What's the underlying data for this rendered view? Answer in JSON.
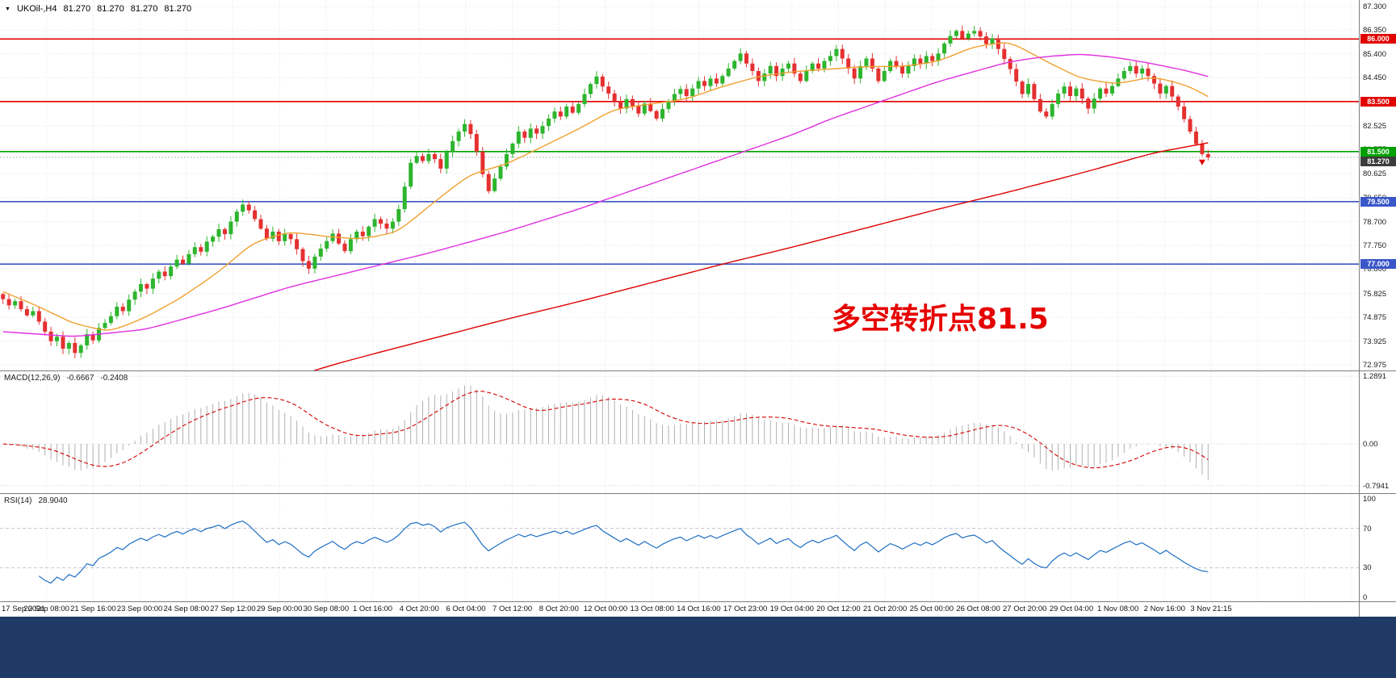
{
  "app": {
    "bottom_bar_color": "#1f3a64"
  },
  "symbol_info": {
    "marker": "▼",
    "name": "UKOil-,H4",
    "open": "81.270",
    "high": "81.270",
    "low": "81.270",
    "close": "81.270"
  },
  "annotation": {
    "text": "多空转折点81.5",
    "color": "#e60000"
  },
  "chart_data": {
    "type": "candlestick",
    "symbol": "UKOil-",
    "timeframe": "H4",
    "current_price": 81.27,
    "price_axis": {
      "min": 72.975,
      "max": 87.3,
      "labels": [
        "87.300",
        "86.350",
        "85.400",
        "84.450",
        "83.500",
        "82.525",
        "81.575",
        "80.625",
        "79.650",
        "78.700",
        "77.750",
        "76.800",
        "75.825",
        "74.875",
        "73.925",
        "72.975"
      ]
    },
    "time_labels": [
      "17 Sep 2021",
      "20 Sep 08:00",
      "21 Sep 16:00",
      "23 Sep 00:00",
      "24 Sep 08:00",
      "27 Sep 12:00",
      "29 Sep 00:00",
      "30 Sep 08:00",
      "1 Oct 16:00",
      "4 Oct 20:00",
      "6 Oct 04:00",
      "7 Oct 12:00",
      "8 Oct 20:00",
      "12 Oct 00:00",
      "13 Oct 08:00",
      "14 Oct 16:00",
      "17 Oct 23:00",
      "19 Oct 04:00",
      "20 Oct 12:00",
      "21 Oct 20:00",
      "25 Oct 00:00",
      "26 Oct 08:00",
      "27 Oct 20:00",
      "29 Oct 04:00",
      "1 Nov 08:00",
      "2 Nov 16:00",
      "3 Nov 21:15"
    ],
    "candles": {
      "first_open": 75.8,
      "closes": [
        75.6,
        75.35,
        75.52,
        75.2,
        74.95,
        75.12,
        74.7,
        74.3,
        73.92,
        74.1,
        73.62,
        73.85,
        73.45,
        73.75,
        74.2,
        73.95,
        74.45,
        74.65,
        74.92,
        75.3,
        75.12,
        75.58,
        75.9,
        76.2,
        76.02,
        76.42,
        76.7,
        76.52,
        76.9,
        77.18,
        77.02,
        77.4,
        77.68,
        77.5,
        77.9,
        78.1,
        78.4,
        78.2,
        78.7,
        79.1,
        79.38,
        79.15,
        78.8,
        78.42,
        78.02,
        78.3,
        77.92,
        78.2,
        78.0,
        77.6,
        77.12,
        76.82,
        77.3,
        77.62,
        77.92,
        78.22,
        77.82,
        77.52,
        78.0,
        78.3,
        78.12,
        78.5,
        78.8,
        78.62,
        78.42,
        78.7,
        79.2,
        80.1,
        81.05,
        81.32,
        81.12,
        81.4,
        81.2,
        80.82,
        81.5,
        81.92,
        82.3,
        82.6,
        82.2,
        81.5,
        80.6,
        79.92,
        80.42,
        80.9,
        81.4,
        81.82,
        82.3,
        82.05,
        82.42,
        82.22,
        82.52,
        82.82,
        83.1,
        82.9,
        83.3,
        83.05,
        83.4,
        83.8,
        84.2,
        84.5,
        84.1,
        83.82,
        83.52,
        83.22,
        83.6,
        83.32,
        83.02,
        83.42,
        83.12,
        82.82,
        83.2,
        83.52,
        83.8,
        84.0,
        83.72,
        84.02,
        84.32,
        84.12,
        84.42,
        84.22,
        84.52,
        84.82,
        85.12,
        85.42,
        85.02,
        84.72,
        84.32,
        84.62,
        84.92,
        84.52,
        84.82,
        85.02,
        84.62,
        84.32,
        84.72,
        85.02,
        84.82,
        85.12,
        85.32,
        85.6,
        85.22,
        84.82,
        84.42,
        84.92,
        85.22,
        84.82,
        84.32,
        84.72,
        85.12,
        84.92,
        84.62,
        84.92,
        85.22,
        85.02,
        85.32,
        85.12,
        85.42,
        85.82,
        86.12,
        86.32,
        86.02,
        86.22,
        86.32,
        86.1,
        85.8,
        86.02,
        85.6,
        85.2,
        84.8,
        84.3,
        83.8,
        84.2,
        83.6,
        83.1,
        82.9,
        83.4,
        83.82,
        84.1,
        83.72,
        84.02,
        83.62,
        83.22,
        83.62,
        84.02,
        83.82,
        84.12,
        84.42,
        84.72,
        84.92,
        84.62,
        84.82,
        84.52,
        84.22,
        83.82,
        84.12,
        83.7,
        83.3,
        82.8,
        82.3,
        81.8,
        81.4,
        81.27
      ]
    },
    "moving_averages": [
      {
        "name": "fast-ma",
        "color": "#f0a030",
        "points": [
          [
            0,
            75.9
          ],
          [
            6,
            75.3
          ],
          [
            12,
            74.6
          ],
          [
            18,
            74.3
          ],
          [
            24,
            74.9
          ],
          [
            30,
            75.7
          ],
          [
            36,
            76.7
          ],
          [
            42,
            77.9
          ],
          [
            48,
            78.3
          ],
          [
            54,
            78.1
          ],
          [
            60,
            78.0
          ],
          [
            66,
            78.3
          ],
          [
            72,
            79.5
          ],
          [
            78,
            80.6
          ],
          [
            84,
            81.0
          ],
          [
            90,
            81.7
          ],
          [
            96,
            82.4
          ],
          [
            102,
            83.2
          ],
          [
            108,
            83.4
          ],
          [
            114,
            83.6
          ],
          [
            120,
            84.1
          ],
          [
            126,
            84.5
          ],
          [
            132,
            84.7
          ],
          [
            138,
            84.8
          ],
          [
            144,
            84.9
          ],
          [
            150,
            84.9
          ],
          [
            156,
            85.1
          ],
          [
            162,
            85.7
          ],
          [
            168,
            85.9
          ],
          [
            174,
            85.1
          ],
          [
            180,
            84.4
          ],
          [
            186,
            84.2
          ],
          [
            192,
            84.5
          ],
          [
            198,
            84.1
          ],
          [
            201,
            83.7
          ]
        ]
      },
      {
        "name": "medium-ma",
        "color": "#e030e0",
        "points": [
          [
            0,
            74.3
          ],
          [
            12,
            74.1
          ],
          [
            24,
            74.4
          ],
          [
            36,
            75.2
          ],
          [
            48,
            76.1
          ],
          [
            60,
            76.8
          ],
          [
            72,
            77.5
          ],
          [
            84,
            78.3
          ],
          [
            96,
            79.2
          ],
          [
            108,
            80.2
          ],
          [
            120,
            81.2
          ],
          [
            132,
            82.2
          ],
          [
            138,
            82.8
          ],
          [
            144,
            83.3
          ],
          [
            150,
            83.8
          ],
          [
            156,
            84.3
          ],
          [
            162,
            84.7
          ],
          [
            168,
            85.1
          ],
          [
            174,
            85.3
          ],
          [
            180,
            85.4
          ],
          [
            186,
            85.25
          ],
          [
            192,
            85.0
          ],
          [
            198,
            84.7
          ],
          [
            201,
            84.5
          ]
        ]
      },
      {
        "name": "slow-ma",
        "color": "#dd0000",
        "points": [
          [
            46,
            72.3
          ],
          [
            55,
            72.975
          ],
          [
            60,
            73.3
          ],
          [
            72,
            74.05
          ],
          [
            84,
            74.8
          ],
          [
            96,
            75.5
          ],
          [
            108,
            76.25
          ],
          [
            120,
            77.0
          ],
          [
            132,
            77.7
          ],
          [
            144,
            78.45
          ],
          [
            156,
            79.2
          ],
          [
            168,
            79.9
          ],
          [
            180,
            80.65
          ],
          [
            192,
            81.45
          ],
          [
            201,
            81.85
          ]
        ]
      }
    ],
    "horizontal_lines": [
      {
        "price": 86.0,
        "color": "#e00000",
        "label": "86.000"
      },
      {
        "price": 83.5,
        "color": "#e00000",
        "label": "83.500"
      },
      {
        "price": 81.5,
        "color": "#00a000",
        "label": "81.500"
      },
      {
        "price": 79.5,
        "color": "#3a57c8",
        "label": "79.500"
      },
      {
        "price": 77.0,
        "color": "#3a57c8",
        "label": "77.000"
      }
    ],
    "current_price_badge": {
      "label": "81.270",
      "price": 81.27,
      "color": "#3c3c3c"
    },
    "sell_arrow": {
      "index": 200,
      "price": 80.95,
      "color": "#e00000"
    },
    "colors": {
      "bull": "#2db52d",
      "bear": "#e53030",
      "grid": "#e6e6e6",
      "macd_hist": "#b0b0b0",
      "macd_signal": "#d40000",
      "rsi_line": "#1e6fc4"
    },
    "indicators": {
      "macd": {
        "label": "MACD(12,26,9)",
        "value_main": "-0.6667",
        "value_signal": "-0.2408",
        "fast": 12,
        "slow": 26,
        "signal": 9,
        "axis_labels": [
          {
            "text": "1.2891",
            "value": 1.2891
          },
          {
            "text": "0.00",
            "value": 0
          },
          {
            "text": "-0.7941",
            "value": -0.7941
          }
        ]
      },
      "rsi": {
        "label": "RSI(14)",
        "value": "28.9040",
        "period": 14,
        "levels": [
          70,
          30
        ],
        "axis_labels": [
          {
            "text": "100",
            "value": 100
          },
          {
            "text": "70",
            "value": 70
          },
          {
            "text": "30",
            "value": 30
          },
          {
            "text": "0",
            "value": 0
          }
        ]
      }
    }
  }
}
